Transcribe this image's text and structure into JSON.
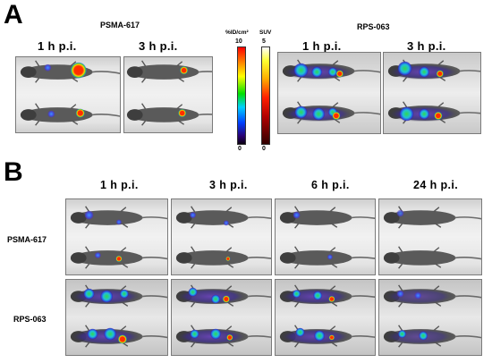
{
  "panel_a": {
    "letter": "A",
    "groups": [
      {
        "compound": "PSMA-617",
        "timepoints": [
          "1 h p.i.",
          "3 h p.i."
        ]
      },
      {
        "compound": "RPS-063",
        "timepoints": [
          "1 h p.i.",
          "3 h p.i."
        ]
      }
    ],
    "scales": [
      {
        "label": "%ID/cm²",
        "max": "10",
        "min": "0",
        "colormap": "rainbow"
      },
      {
        "label": "SUV",
        "max": "5",
        "min": "0",
        "colormap": "hot"
      }
    ]
  },
  "panel_b": {
    "letter": "B",
    "timepoints": [
      "1 h p.i.",
      "3 h p.i.",
      "6 h p.i.",
      "24 h p.i."
    ],
    "rows": [
      {
        "label": "PSMA-617"
      },
      {
        "label": "RPS-063"
      }
    ]
  },
  "colors": {
    "hot_spot": "#ff1a00",
    "spect_green": "#30d040",
    "spect_cyan": "#20c8e8",
    "spect_blue": "#3050e0",
    "pet_purple": "#6a2bb0"
  }
}
